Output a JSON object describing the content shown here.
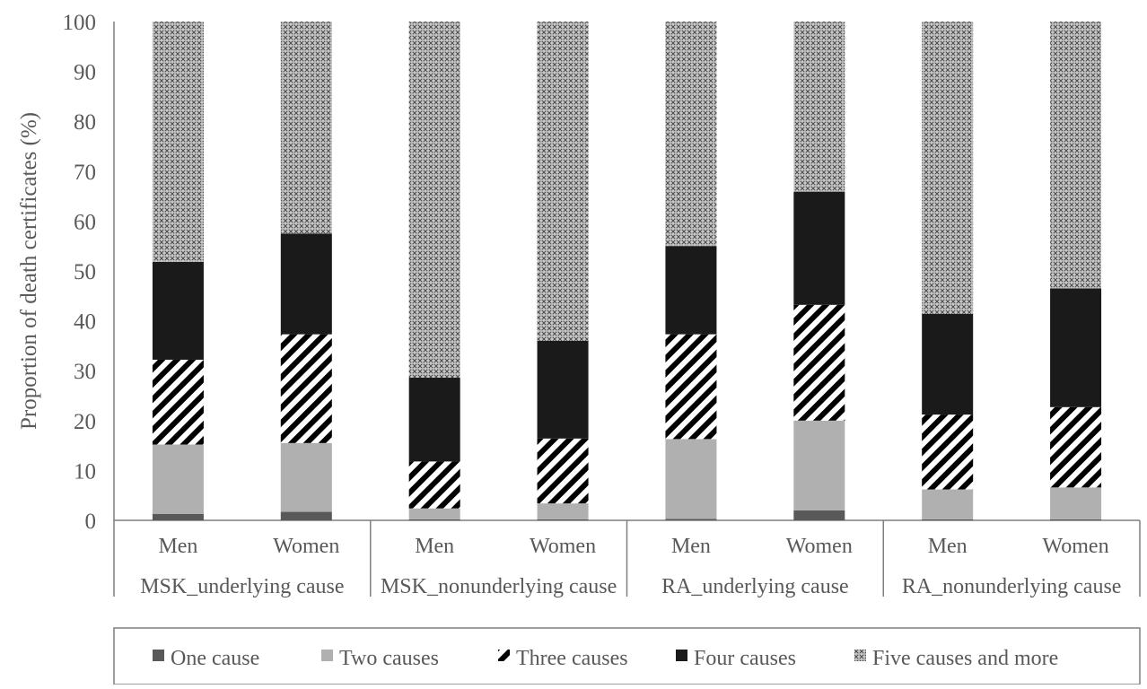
{
  "chart_data": {
    "type": "bar",
    "stacked": true,
    "ylabel": "Proportion of death certificates (%)",
    "ylim": [
      0,
      100
    ],
    "yticks": [
      0,
      10,
      20,
      30,
      40,
      50,
      60,
      70,
      80,
      90,
      100
    ],
    "grid": false,
    "legend_position": "bottom",
    "groups": [
      {
        "label": "MSK_underlying cause",
        "categories": [
          "Men",
          "Women"
        ]
      },
      {
        "label": "MSK_nonunderlying cause",
        "categories": [
          "Men",
          "Women"
        ]
      },
      {
        "label": "RA_underlying cause",
        "categories": [
          "Men",
          "Women"
        ]
      },
      {
        "label": "RA_nonunderlying cause",
        "categories": [
          "Men",
          "Women"
        ]
      }
    ],
    "series": [
      {
        "name": "One cause",
        "color": "#595959",
        "pattern": "solid-dark",
        "values": [
          1.3,
          1.7,
          0.2,
          0.2,
          0.3,
          2.0,
          0.2,
          0.2
        ]
      },
      {
        "name": "Two causes",
        "color": "#b0b0b0",
        "pattern": "solid-light",
        "values": [
          13.9,
          13.8,
          2.2,
          3.2,
          16.0,
          18.0,
          6.0,
          6.4
        ]
      },
      {
        "name": "Three causes",
        "color": "#000000",
        "pattern": "diagonal-stripes",
        "values": [
          17.0,
          21.8,
          9.4,
          13.0,
          21.0,
          23.2,
          15.0,
          16.1
        ]
      },
      {
        "name": "Four causes",
        "color": "#1a1a1a",
        "pattern": "solid-black",
        "values": [
          19.6,
          20.2,
          16.8,
          19.6,
          17.7,
          22.7,
          20.2,
          23.8
        ]
      },
      {
        "name": "Five causes and more",
        "color": "#7f7f7f",
        "pattern": "crosshatch",
        "values": [
          48.2,
          42.5,
          71.4,
          64.0,
          45.0,
          34.1,
          58.6,
          53.5
        ]
      }
    ]
  }
}
